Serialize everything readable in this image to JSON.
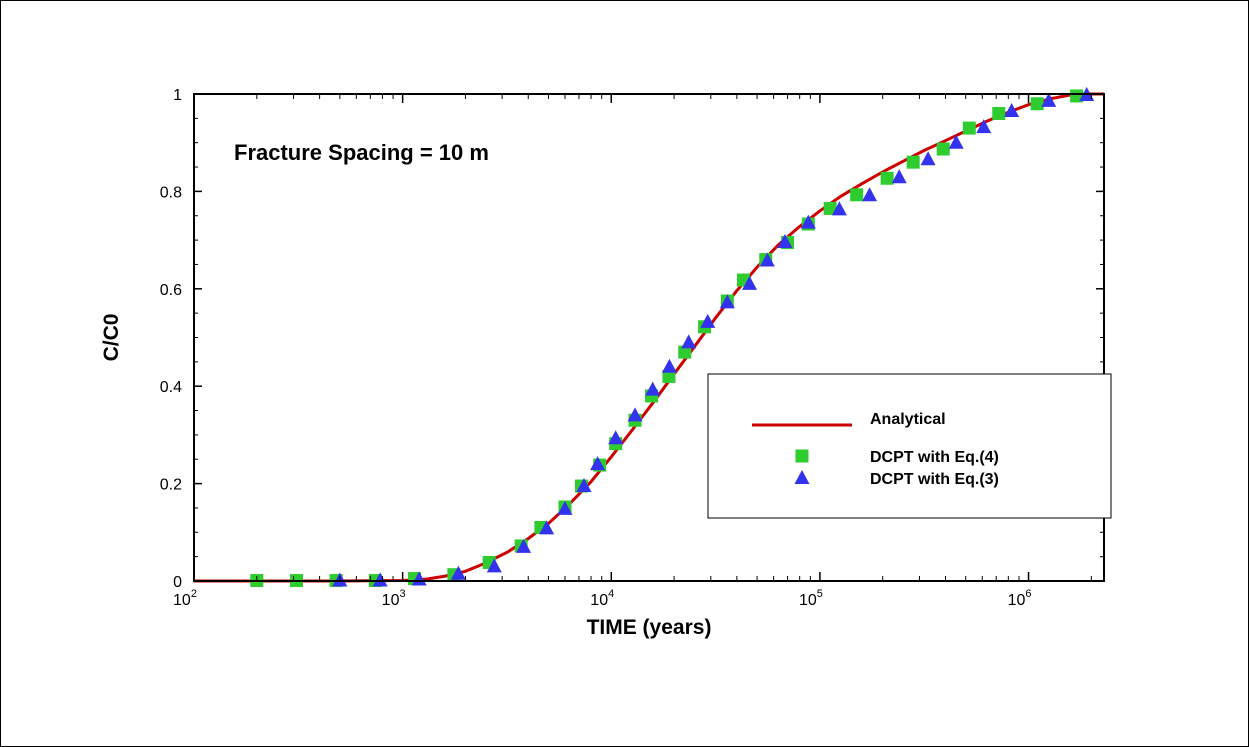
{
  "chart_data": {
    "type": "scatter",
    "title": "",
    "annotation": "Fracture Spacing = 10 m",
    "xlabel": "TIME (years)",
    "ylabel": "C/C0",
    "xscale": "log",
    "xlim": [
      100,
      2300000
    ],
    "ylim": [
      0,
      1
    ],
    "grid": false,
    "legend_position": "right",
    "x_ticks": [
      {
        "base": "10",
        "exp": "2",
        "value": 100
      },
      {
        "base": "10",
        "exp": "3",
        "value": 1000
      },
      {
        "base": "10",
        "exp": "4",
        "value": 10000
      },
      {
        "base": "10",
        "exp": "5",
        "value": 100000
      },
      {
        "base": "10",
        "exp": "6",
        "value": 1000000
      }
    ],
    "y_ticks": [
      {
        "label": "0",
        "value": 0
      },
      {
        "label": "0.2",
        "value": 0.2
      },
      {
        "label": "0.4",
        "value": 0.4
      },
      {
        "label": "0.6",
        "value": 0.6
      },
      {
        "label": "0.8",
        "value": 0.8
      },
      {
        "label": "1",
        "value": 1
      }
    ],
    "series": [
      {
        "name": "Analytical",
        "kind": "line",
        "color": "#cc0000",
        "x": [
          100,
          500,
          1000,
          1300,
          1600,
          2000,
          2500,
          3200,
          4000,
          5000,
          6300,
          8000,
          10000,
          12600,
          15900,
          20000,
          25100,
          31600,
          39800,
          50100,
          63100,
          79400,
          100000,
          126000,
          158000,
          200000,
          251000,
          316000,
          398000,
          501000,
          631000,
          794000,
          1000000,
          1260000,
          1580000,
          1900000,
          2300000
        ],
        "y": [
          0,
          0,
          0.001,
          0.004,
          0.01,
          0.02,
          0.037,
          0.06,
          0.087,
          0.118,
          0.158,
          0.204,
          0.255,
          0.31,
          0.367,
          0.425,
          0.482,
          0.54,
          0.595,
          0.645,
          0.69,
          0.727,
          0.76,
          0.79,
          0.815,
          0.84,
          0.862,
          0.884,
          0.904,
          0.924,
          0.944,
          0.962,
          0.978,
          0.99,
          0.998,
          1.0,
          1.0
        ]
      },
      {
        "name": "DCPT with Eq.(4)",
        "kind": "square",
        "color": "#2ecc2e",
        "x": [
          200,
          310,
          480,
          740,
          1140,
          1760,
          2600,
          3700,
          4600,
          6000,
          7200,
          8800,
          10500,
          13000,
          15600,
          18900,
          22500,
          28000,
          36000,
          43000,
          55000,
          70000,
          88000,
          112000,
          150000,
          210000,
          280000,
          390000,
          520000,
          720000,
          1100000,
          1700000
        ],
        "y": [
          0.001,
          0.001,
          0.001,
          0.001,
          0.005,
          0.013,
          0.038,
          0.072,
          0.11,
          0.152,
          0.195,
          0.238,
          0.282,
          0.33,
          0.38,
          0.42,
          0.47,
          0.522,
          0.575,
          0.618,
          0.66,
          0.695,
          0.733,
          0.765,
          0.793,
          0.827,
          0.86,
          0.887,
          0.93,
          0.96,
          0.98,
          0.996
        ]
      },
      {
        "name": "DCPT with Eq.(3)",
        "kind": "triangle",
        "color": "#3333ee",
        "x": [
          500,
          780,
          1200,
          1850,
          2750,
          3800,
          4900,
          6000,
          7400,
          8600,
          10500,
          13000,
          15800,
          19000,
          23500,
          29000,
          36000,
          46000,
          56000,
          68000,
          88000,
          124000,
          173000,
          240000,
          330000,
          450000,
          610000,
          830000,
          1250000,
          1900000
        ],
        "y": [
          0.001,
          0.001,
          0.003,
          0.015,
          0.03,
          0.07,
          0.108,
          0.148,
          0.195,
          0.24,
          0.293,
          0.34,
          0.393,
          0.44,
          0.49,
          0.532,
          0.572,
          0.61,
          0.658,
          0.696,
          0.736,
          0.763,
          0.792,
          0.829,
          0.866,
          0.9,
          0.932,
          0.965,
          0.986,
          0.998
        ]
      }
    ]
  }
}
